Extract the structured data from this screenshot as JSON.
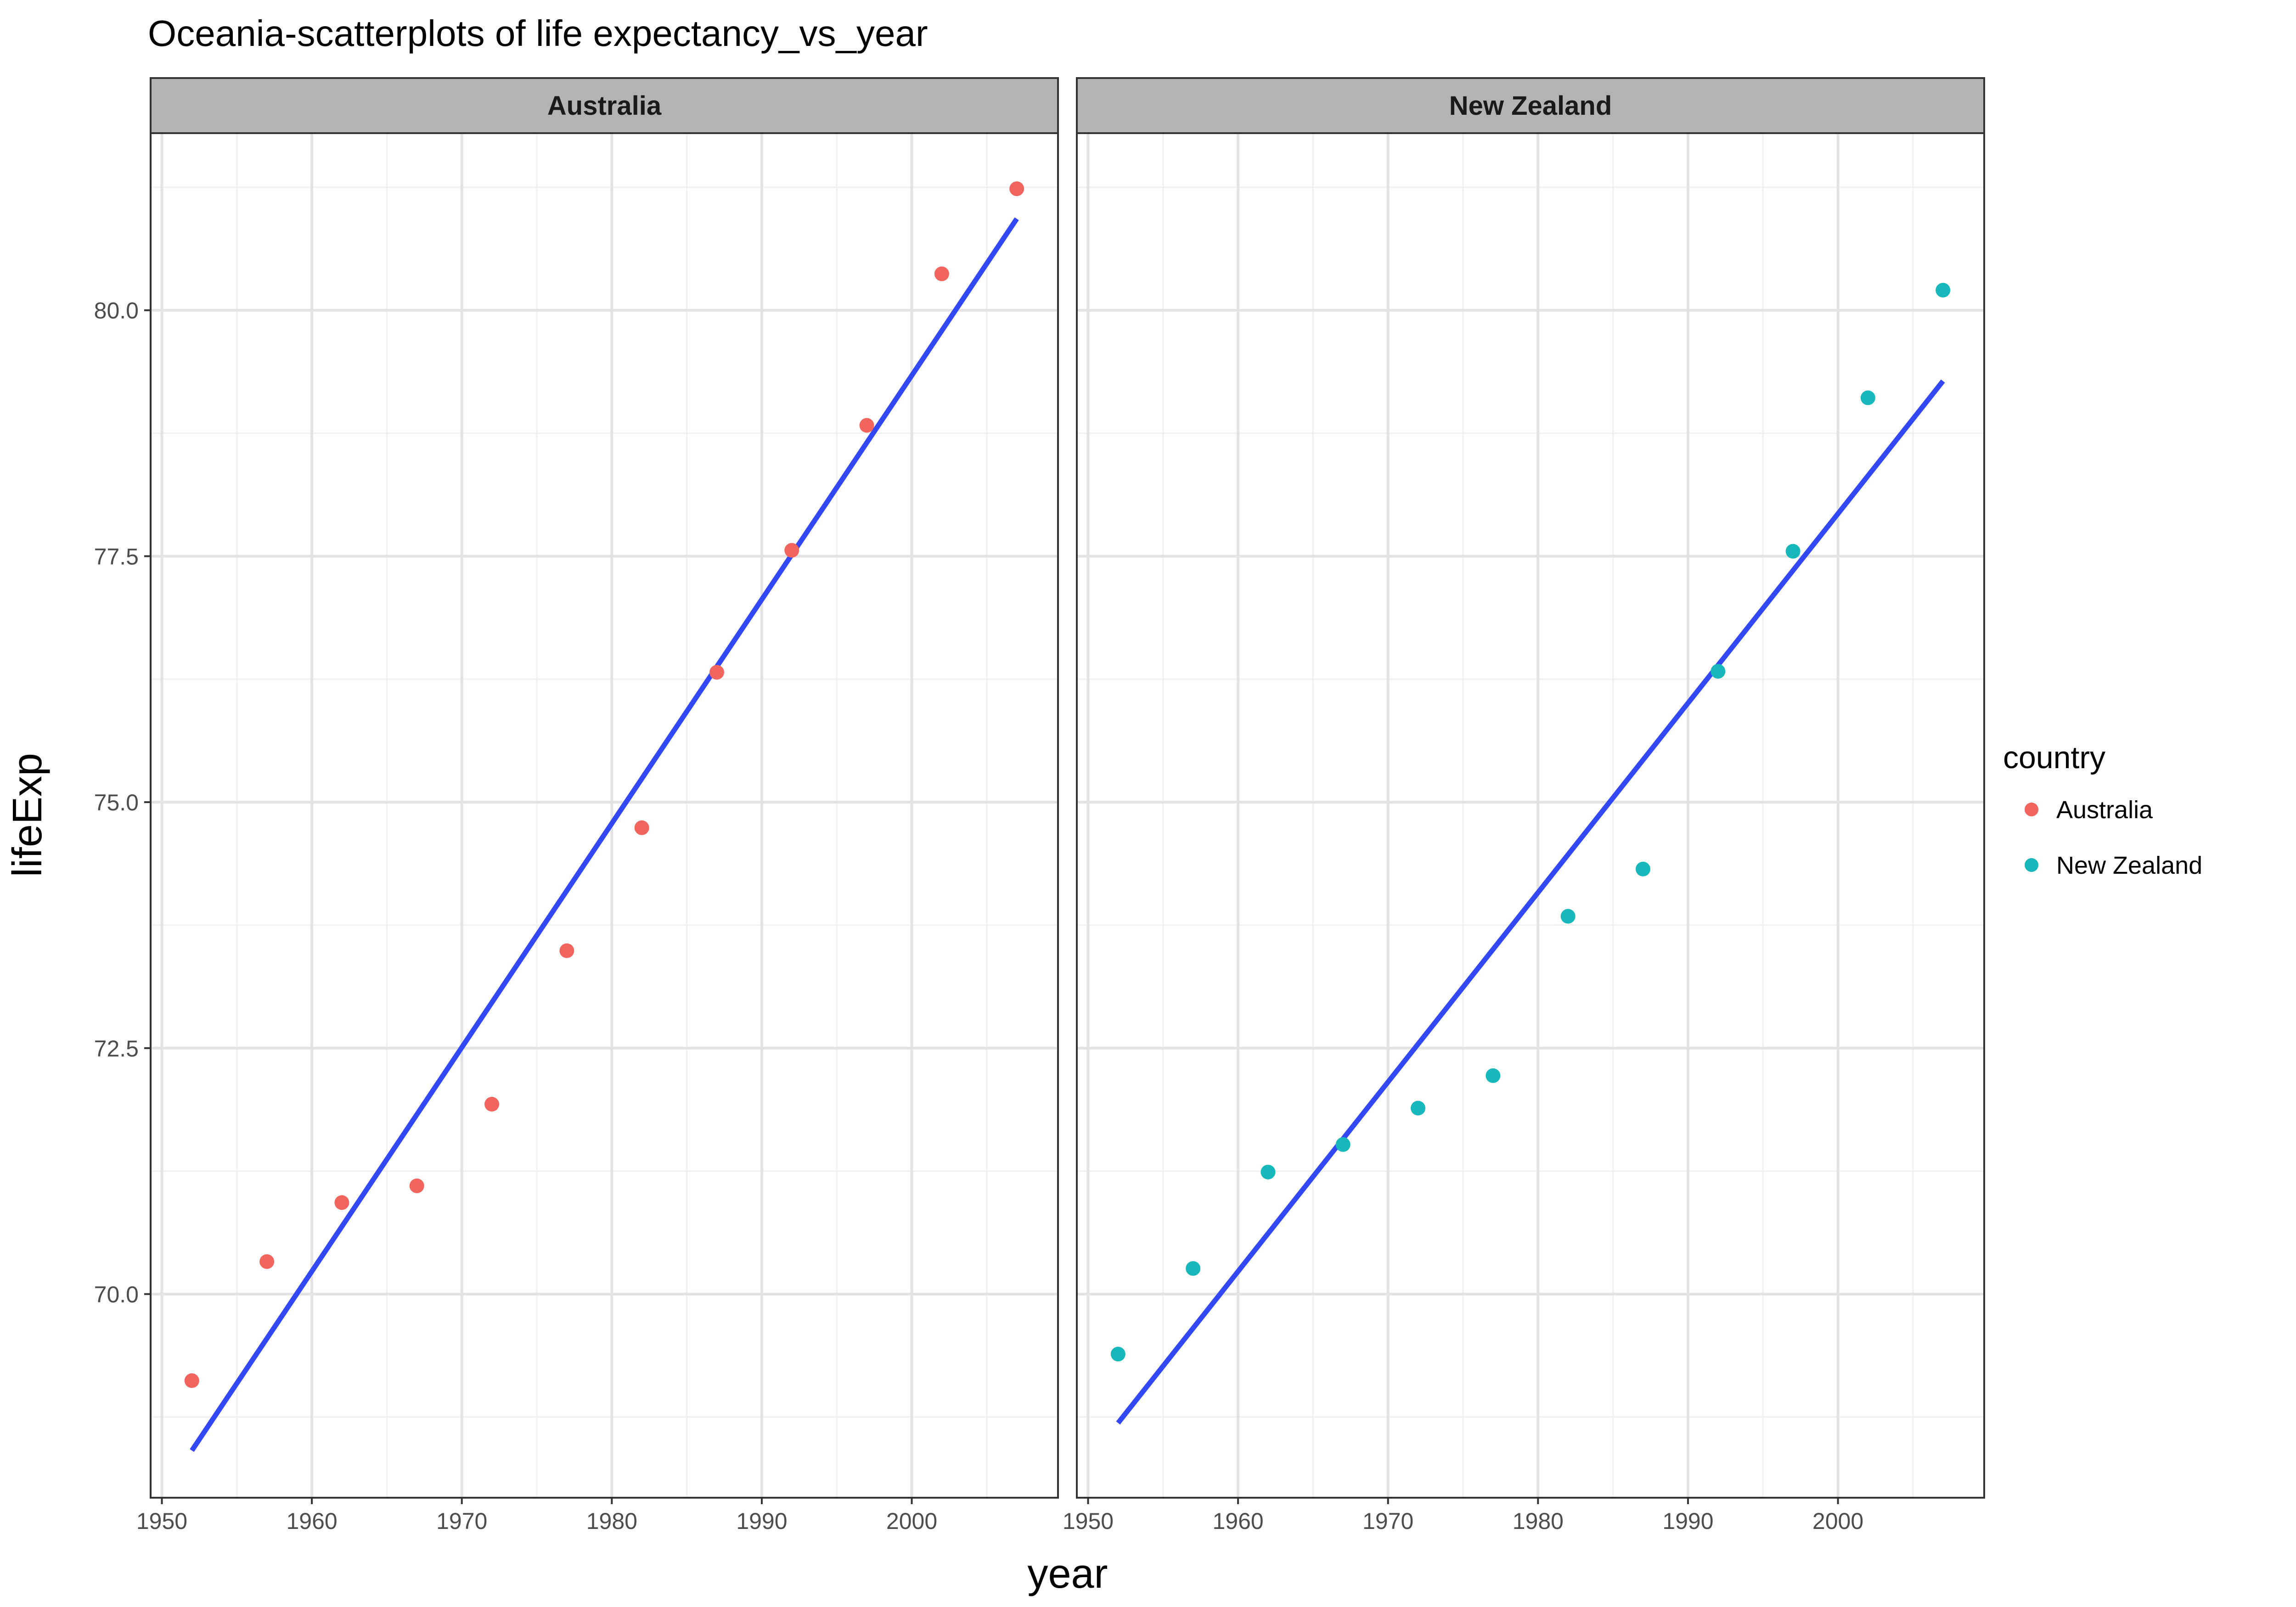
{
  "chart_data": {
    "type": "scatter",
    "title": "Oceania-scatterplots of life expectancy_vs_year",
    "xlabel": "year",
    "ylabel": "lifeExp",
    "xlim": [
      1949.25,
      2009.75
    ],
    "ylim": [
      67.93,
      81.8
    ],
    "x_ticks": [
      1950,
      1960,
      1970,
      1980,
      1990,
      2000
    ],
    "y_ticks": [
      70.0,
      72.5,
      75.0,
      77.5,
      80.0
    ],
    "x_tick_labels": [
      "1950",
      "1960",
      "1970",
      "1980",
      "1990",
      "2000"
    ],
    "y_tick_labels": [
      "70.0",
      "72.5",
      "75.0",
      "77.5",
      "80.0"
    ],
    "grid": true,
    "facet_by": "country",
    "legend": {
      "title": "country",
      "position": "right",
      "entries": [
        "Australia",
        "New Zealand"
      ]
    },
    "fit_line_color": "#3348f5",
    "panels": [
      {
        "strip_label": "Australia",
        "color": "#f2645e",
        "x": [
          1952,
          1957,
          1962,
          1967,
          1972,
          1977,
          1982,
          1987,
          1992,
          1997,
          2002,
          2007
        ],
        "y": [
          69.12,
          70.33,
          70.93,
          71.1,
          71.93,
          73.49,
          74.74,
          76.32,
          77.56,
          78.83,
          80.37,
          81.235
        ],
        "fit": {
          "x": [
            1952,
            2007
          ],
          "y": [
            68.41,
            80.93
          ]
        }
      },
      {
        "strip_label": "New Zealand",
        "color": "#17b8bc",
        "x": [
          1952,
          1957,
          1962,
          1967,
          1972,
          1977,
          1982,
          1987,
          1992,
          1997,
          2002,
          2007
        ],
        "y": [
          69.39,
          70.26,
          71.24,
          71.52,
          71.89,
          72.22,
          73.84,
          74.32,
          76.33,
          77.55,
          79.11,
          80.204
        ],
        "fit": {
          "x": [
            1952,
            2007
          ],
          "y": [
            68.69,
            79.28
          ]
        }
      }
    ]
  }
}
